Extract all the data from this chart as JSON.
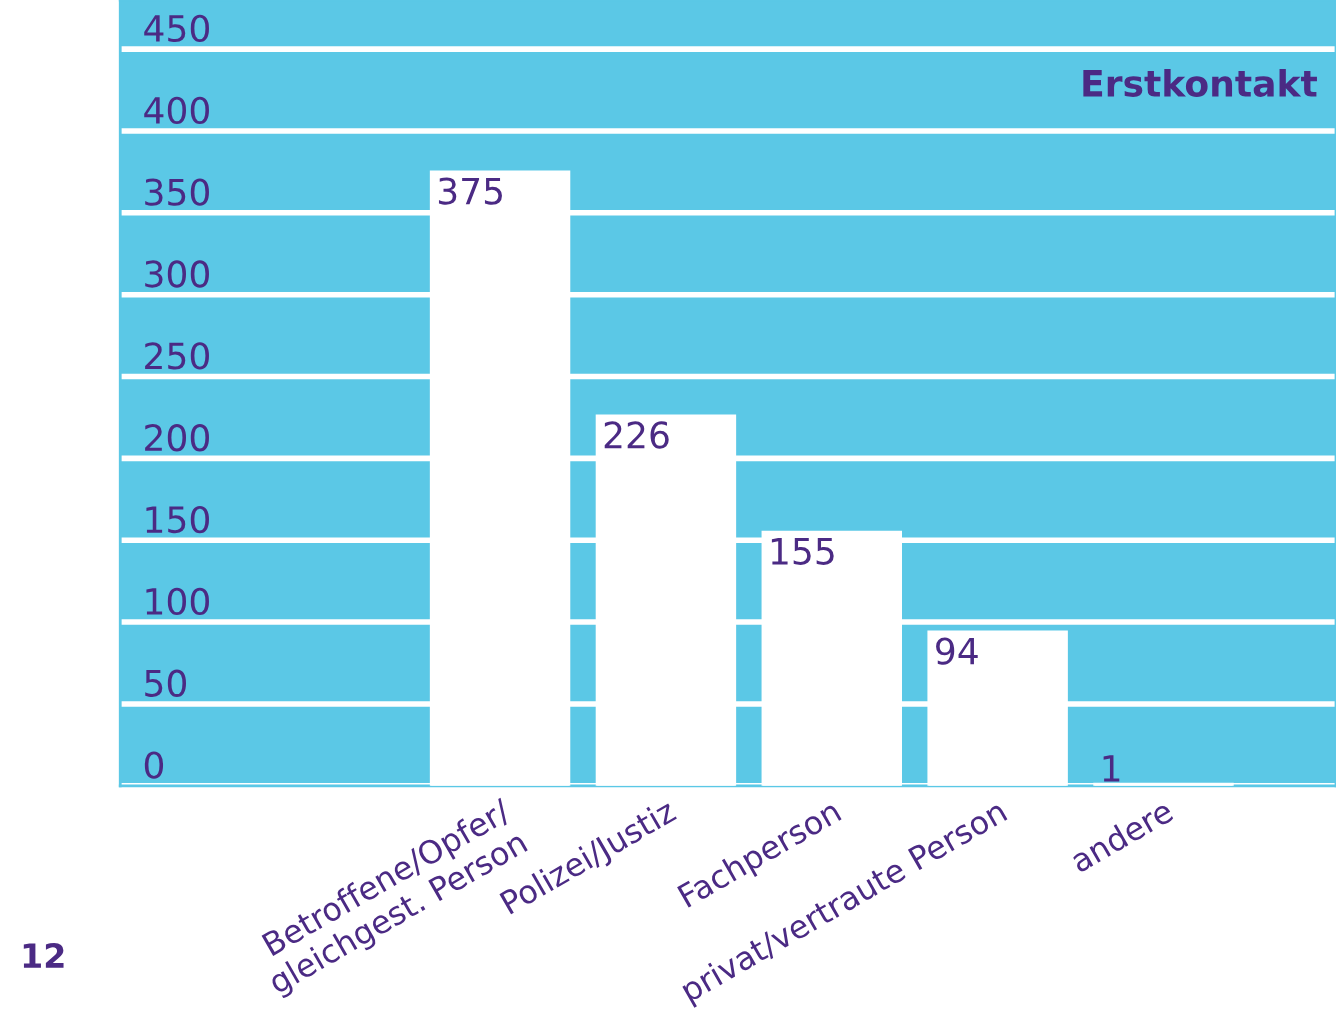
{
  "chart_data": {
    "type": "bar",
    "title": "Erstkontakt",
    "categories": [
      "Betroffene/Opfer/\ngleichgest. Person",
      "Polizei/Justiz",
      "Fachperson",
      "privat/vertraute Person",
      "andere"
    ],
    "values": [
      375,
      226,
      155,
      94,
      1
    ],
    "color": "#ffffff",
    "ylim": [
      0,
      480
    ],
    "yticks": [
      0,
      50,
      100,
      150,
      200,
      250,
      300,
      350,
      400,
      450
    ],
    "grid": "y",
    "data_labels": true,
    "legend": false,
    "annotations": [
      "12"
    ]
  }
}
